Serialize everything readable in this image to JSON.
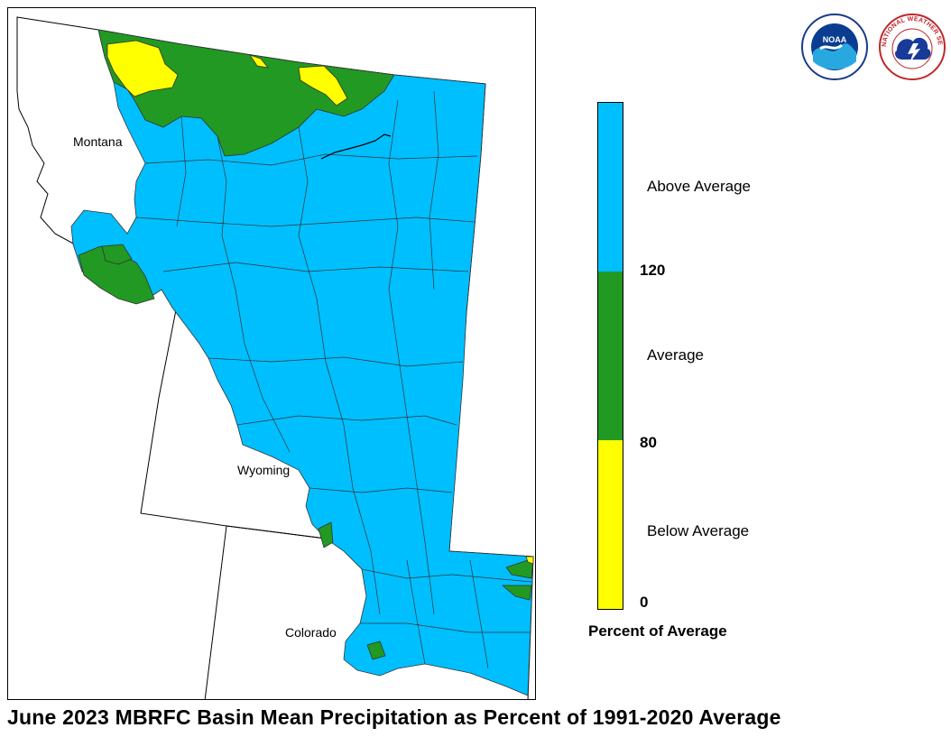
{
  "title": "June 2023 MBRFC Basin Mean Precipitation as Percent of 1991-2020 Average",
  "states": [
    {
      "name": "Montana"
    },
    {
      "name": "Wyoming"
    },
    {
      "name": "Colorado"
    }
  ],
  "legend": {
    "title": "Percent of Average",
    "categories": [
      {
        "label": "Above Average",
        "color": "#00BFFF"
      },
      {
        "label": "Average",
        "color": "#229922"
      },
      {
        "label": "Below Average",
        "color": "#FFFF00"
      }
    ],
    "breaks": [
      "120",
      "80",
      "0"
    ]
  },
  "logos": [
    {
      "icon": "noaa-logo-icon",
      "text": "NOAA"
    },
    {
      "icon": "nws-logo-icon",
      "text": "NATIONAL WEATHER SERVICE"
    }
  ],
  "colors": {
    "border": "#000000",
    "basin_lines": "#333333",
    "background": "#ffffff"
  }
}
